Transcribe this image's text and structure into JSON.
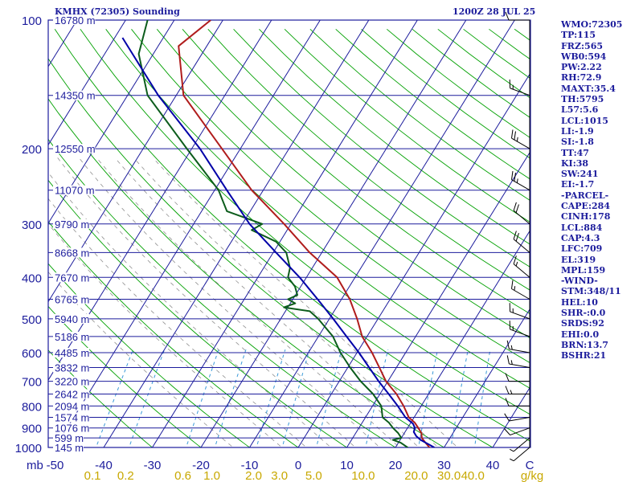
{
  "header": {
    "station_label": "KMHX (72305) Sounding",
    "time_label": "1200Z 28 JUL 25"
  },
  "side_panel": {
    "items": [
      "WMO:72305",
      "TP:115",
      "FRZ:565",
      "WB0:594",
      "PW:2.22",
      "RH:72.9",
      "MAXT:35.4",
      "TH:5795",
      "L57:5.6",
      "LCL:1015",
      "LI:-1.9",
      "SI:-1.8",
      "TT:47",
      "KI:38",
      "SW:241",
      "EI:-1.7",
      "-PARCEL-",
      "CAPE:284",
      "CINH:178",
      "LCL:884",
      "CAP:4.3",
      "LFC:709",
      "EL:319",
      "MPL:159",
      "-WIND-",
      "STM:348/11",
      "HEL:10",
      "SHR-:0.0",
      "SRDS:92",
      "EHI:0.0",
      "BRN:13.7",
      "BSHR:21"
    ]
  },
  "chart_data": {
    "type": "line",
    "title": "KMHX (72305) Sounding",
    "subtitle": "1200Z 28 JUL 25",
    "xlabel": "C",
    "ylabel": "mb",
    "x_unit_secondary": "g/kg",
    "pressure_axis": {
      "scale": "log",
      "range": [
        1000,
        100
      ],
      "tick_labels": [
        "100",
        "200",
        "300",
        "400",
        "500",
        "600",
        "700",
        "800",
        "900",
        "1000"
      ]
    },
    "temperature_axis": {
      "range": [
        -50,
        50
      ],
      "tick_labels": [
        "-50",
        "-40",
        "-30",
        "-20",
        "-10",
        "0",
        "10",
        "20",
        "30",
        "40",
        "C"
      ]
    },
    "mixing_ratio_labels": [
      "0.1",
      "0.2",
      "0.6",
      "1.0",
      "2.0",
      "3.0",
      "5.0",
      "10.0",
      "20.0",
      "30.0",
      "40.0",
      "g/kg"
    ],
    "height_labels": [
      {
        "p": 100,
        "label": "16780 m"
      },
      {
        "p": 150,
        "label": "14350 m"
      },
      {
        "p": 200,
        "label": "12550 m"
      },
      {
        "p": 250,
        "label": "11070 m"
      },
      {
        "p": 300,
        "label": "9790 m"
      },
      {
        "p": 350,
        "label": "8668 m"
      },
      {
        "p": 400,
        "label": "7670 m"
      },
      {
        "p": 450,
        "label": "6765 m"
      },
      {
        "p": 500,
        "label": "5940 m"
      },
      {
        "p": 550,
        "label": "5186 m"
      },
      {
        "p": 600,
        "label": "4485 m"
      },
      {
        "p": 650,
        "label": "3832 m"
      },
      {
        "p": 700,
        "label": "3220 m"
      },
      {
        "p": 750,
        "label": "2642 m"
      },
      {
        "p": 800,
        "label": "2094 m"
      },
      {
        "p": 850,
        "label": "1574 m"
      },
      {
        "p": 900,
        "label": "1076 m"
      },
      {
        "p": 950,
        "label": "599 m"
      },
      {
        "p": 1000,
        "label": "145 m"
      }
    ],
    "series": [
      {
        "values": [
          {
            "p": 1014,
            "t": 28.0
          },
          {
            "p": 1000,
            "t": 27.0
          },
          {
            "p": 975,
            "t": 25.6
          },
          {
            "p": 950,
            "t": 24.2
          },
          {
            "p": 925,
            "t": 23.5
          },
          {
            "p": 900,
            "t": 22.2
          },
          {
            "p": 875,
            "t": 20.8
          },
          {
            "p": 850,
            "t": 18.9
          },
          {
            "p": 800,
            "t": 16.4
          },
          {
            "p": 750,
            "t": 13.4
          },
          {
            "p": 700,
            "t": 9.6
          },
          {
            "p": 650,
            "t": 6.5
          },
          {
            "p": 600,
            "t": 3.1
          },
          {
            "p": 550,
            "t": -1.0
          },
          {
            "p": 500,
            "t": -4.3
          },
          {
            "p": 450,
            "t": -8.3
          },
          {
            "p": 400,
            "t": -13.7
          },
          {
            "p": 350,
            "t": -22.5
          },
          {
            "p": 300,
            "t": -31.4
          },
          {
            "p": 250,
            "t": -42.4
          },
          {
            "p": 200,
            "t": -53.8
          },
          {
            "p": 150,
            "t": -68.5
          },
          {
            "p": 115,
            "t": -75.8
          },
          {
            "p": 100,
            "t": -72.5
          }
        ]
      },
      {
        "values": [
          {
            "p": 1014,
            "t": 23.0
          },
          {
            "p": 1000,
            "t": 22.5
          },
          {
            "p": 975,
            "t": 20.5
          },
          {
            "p": 960,
            "t": 18.5
          },
          {
            "p": 950,
            "t": 20.0
          },
          {
            "p": 925,
            "t": 18.7
          },
          {
            "p": 900,
            "t": 17.0
          },
          {
            "p": 875,
            "t": 15.5
          },
          {
            "p": 850,
            "t": 13.5
          },
          {
            "p": 800,
            "t": 11.8
          },
          {
            "p": 750,
            "t": 8.6
          },
          {
            "p": 700,
            "t": 4.4
          },
          {
            "p": 650,
            "t": 0.5
          },
          {
            "p": 600,
            "t": -3.4
          },
          {
            "p": 550,
            "t": -7.0
          },
          {
            "p": 500,
            "t": -12.3
          },
          {
            "p": 480,
            "t": -15.0
          },
          {
            "p": 470,
            "t": -20.8
          },
          {
            "p": 460,
            "t": -19.0
          },
          {
            "p": 450,
            "t": -21.0
          },
          {
            "p": 440,
            "t": -19.6
          },
          {
            "p": 420,
            "t": -21.2
          },
          {
            "p": 400,
            "t": -23.8
          },
          {
            "p": 380,
            "t": -24.6
          },
          {
            "p": 350,
            "t": -27.3
          },
          {
            "p": 330,
            "t": -30.8
          },
          {
            "p": 310,
            "t": -37.3
          },
          {
            "p": 300,
            "t": -35.9
          },
          {
            "p": 280,
            "t": -44.8
          },
          {
            "p": 250,
            "t": -49.2
          },
          {
            "p": 200,
            "t": -61.0
          },
          {
            "p": 150,
            "t": -75.9
          },
          {
            "p": 120,
            "t": -83.0
          },
          {
            "p": 100,
            "t": -85.5
          }
        ]
      },
      {
        "values": [
          {
            "p": 1000,
            "t": 28.0
          },
          {
            "p": 960,
            "t": 24.2
          },
          {
            "p": 940,
            "t": 22.8
          },
          {
            "p": 920,
            "t": 21.8
          },
          {
            "p": 900,
            "t": 21.5
          },
          {
            "p": 880,
            "t": 20.6
          },
          {
            "p": 850,
            "t": 18.2
          },
          {
            "p": 800,
            "t": 15.2
          },
          {
            "p": 750,
            "t": 11.8
          },
          {
            "p": 700,
            "t": 8.1
          },
          {
            "p": 650,
            "t": 4.4
          },
          {
            "p": 600,
            "t": 0.4
          },
          {
            "p": 550,
            "t": -4.2
          },
          {
            "p": 500,
            "t": -9.2
          },
          {
            "p": 450,
            "t": -14.9
          },
          {
            "p": 400,
            "t": -21.4
          },
          {
            "p": 350,
            "t": -29.4
          },
          {
            "p": 300,
            "t": -38.5
          },
          {
            "p": 250,
            "t": -47.5
          },
          {
            "p": 200,
            "t": -58.3
          },
          {
            "p": 150,
            "t": -73.7
          },
          {
            "p": 110,
            "t": -88.4
          }
        ]
      }
    ],
    "wind_barbs": [
      {
        "p": 1000,
        "dir": 230,
        "spd": 5
      },
      {
        "p": 950,
        "dir": 230,
        "spd": 5
      },
      {
        "p": 900,
        "dir": 250,
        "spd": 10
      },
      {
        "p": 850,
        "dir": 260,
        "spd": 10
      },
      {
        "p": 800,
        "dir": 270,
        "spd": 10
      },
      {
        "p": 750,
        "dir": 270,
        "spd": 15
      },
      {
        "p": 700,
        "dir": 270,
        "spd": 10
      },
      {
        "p": 650,
        "dir": 280,
        "spd": 15
      },
      {
        "p": 600,
        "dir": 280,
        "spd": 15
      },
      {
        "p": 550,
        "dir": 290,
        "spd": 15
      },
      {
        "p": 500,
        "dir": 290,
        "spd": 15
      },
      {
        "p": 450,
        "dir": 300,
        "spd": 15
      },
      {
        "p": 400,
        "dir": 310,
        "spd": 15
      },
      {
        "p": 350,
        "dir": 310,
        "spd": 20
      },
      {
        "p": 300,
        "dir": 310,
        "spd": 20
      },
      {
        "p": 250,
        "dir": 300,
        "spd": 25
      },
      {
        "p": 200,
        "dir": 300,
        "spd": 25
      },
      {
        "p": 150,
        "dir": 290,
        "spd": 15
      },
      {
        "p": 100,
        "dir": 270,
        "spd": 10
      }
    ],
    "colors": {
      "background": "#ffffff",
      "isobar": "#1c1c9c",
      "isotherm": "#1c1c9c",
      "dry_adiabat": "#00a000",
      "moist_adiabat": "#909090",
      "mixing_ratio": "#3a9ad8",
      "temperature": "#b01c1c",
      "dewpoint": "#0c5c1c",
      "parcel": "#0000a8",
      "axis_text": "#1c1c9c",
      "mixing_text": "#c8a800"
    }
  }
}
